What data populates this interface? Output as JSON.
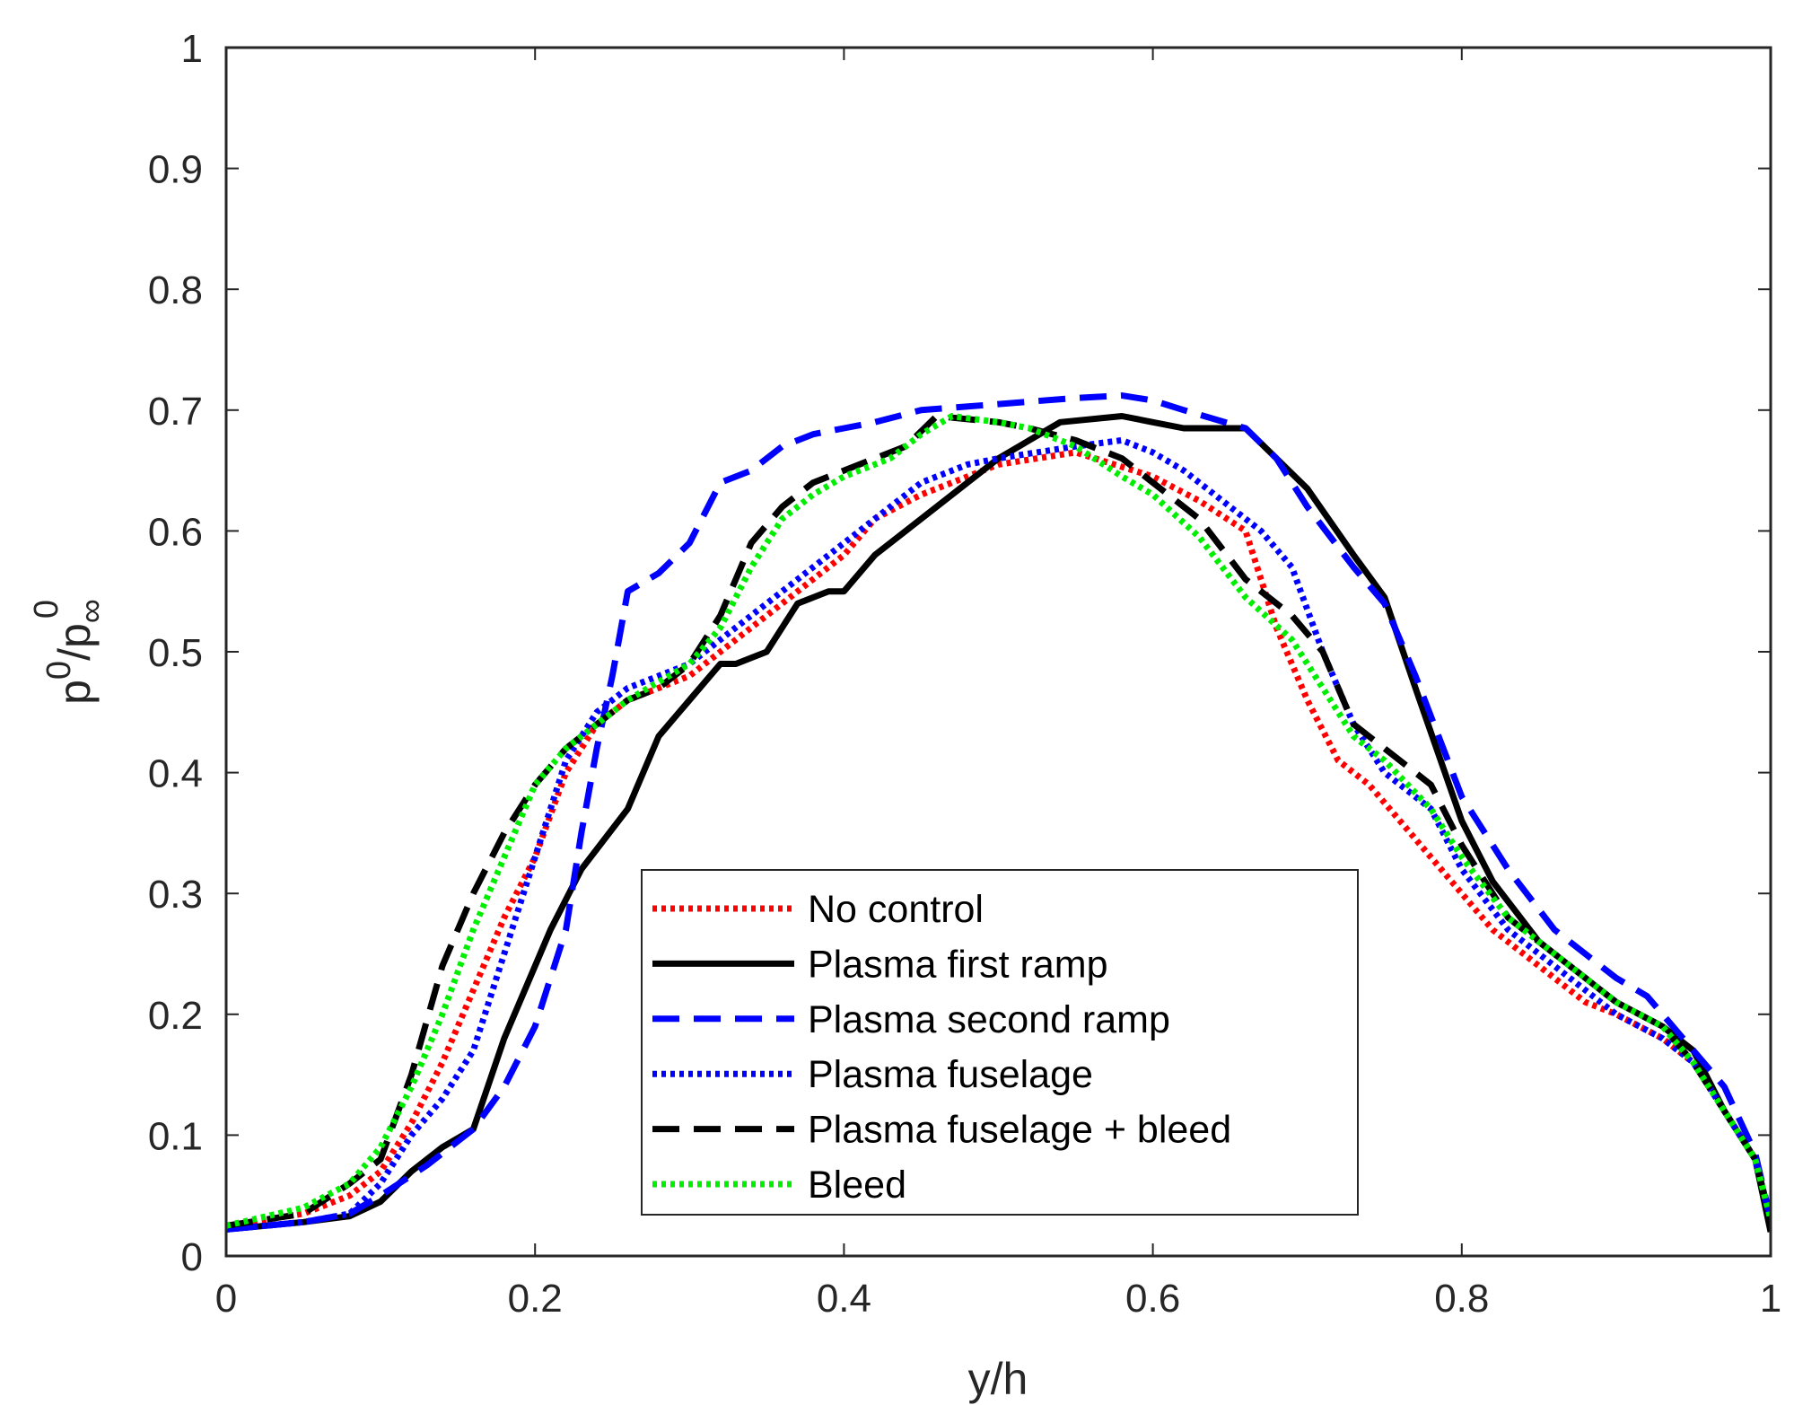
{
  "chart_data": {
    "type": "line",
    "title": "",
    "xlabel": "y/h",
    "ylabel": {
      "base": "p",
      "sup": "0",
      "slash": "/",
      "base2": "p",
      "sub2": "∞",
      "sup2": "0"
    },
    "xlim": [
      0,
      1
    ],
    "ylim": [
      0,
      1
    ],
    "x_ticks": [
      0,
      0.2,
      0.4,
      0.6,
      0.8,
      1
    ],
    "x_tick_labels": [
      "0",
      "0.2",
      "0.4",
      "0.6",
      "0.8",
      "1"
    ],
    "y_ticks": [
      0,
      0.1,
      0.2,
      0.3,
      0.4,
      0.5,
      0.6,
      0.7,
      0.8,
      0.9,
      1
    ],
    "y_tick_labels": [
      "0",
      "0.1",
      "0.2",
      "0.3",
      "0.4",
      "0.5",
      "0.6",
      "0.7",
      "0.8",
      "0.9",
      "1"
    ],
    "grid": false,
    "legend_position": "bottom-center",
    "series": [
      {
        "name": "No control",
        "color": "#ff0000",
        "style": "dotted",
        "x": [
          0,
          0.05,
          0.08,
          0.1,
          0.12,
          0.14,
          0.16,
          0.18,
          0.2,
          0.22,
          0.24,
          0.26,
          0.28,
          0.3,
          0.32,
          0.34,
          0.36,
          0.38,
          0.4,
          0.42,
          0.45,
          0.5,
          0.55,
          0.6,
          0.63,
          0.66,
          0.68,
          0.7,
          0.72,
          0.74,
          0.76,
          0.78,
          0.8,
          0.82,
          0.85,
          0.88,
          0.9,
          0.93,
          0.95,
          0.97,
          0.99,
          1
        ],
        "y": [
          0.025,
          0.035,
          0.05,
          0.07,
          0.11,
          0.16,
          0.22,
          0.28,
          0.33,
          0.4,
          0.44,
          0.46,
          0.47,
          0.48,
          0.5,
          0.52,
          0.54,
          0.56,
          0.58,
          0.61,
          0.63,
          0.655,
          0.665,
          0.645,
          0.625,
          0.6,
          0.52,
          0.46,
          0.41,
          0.39,
          0.36,
          0.33,
          0.3,
          0.27,
          0.24,
          0.21,
          0.2,
          0.18,
          0.16,
          0.12,
          0.08,
          0.03
        ]
      },
      {
        "name": "Plasma first ramp",
        "color": "#000000",
        "style": "solid",
        "x": [
          0,
          0.05,
          0.08,
          0.1,
          0.12,
          0.14,
          0.16,
          0.18,
          0.2,
          0.21,
          0.23,
          0.26,
          0.28,
          0.3,
          0.32,
          0.33,
          0.35,
          0.37,
          0.39,
          0.4,
          0.42,
          0.45,
          0.5,
          0.54,
          0.58,
          0.6,
          0.62,
          0.66,
          0.68,
          0.7,
          0.73,
          0.75,
          0.77,
          0.8,
          0.82,
          0.85,
          0.88,
          0.9,
          0.93,
          0.95,
          0.96,
          0.97,
          0.99,
          1
        ],
        "y": [
          0.022,
          0.028,
          0.033,
          0.045,
          0.07,
          0.09,
          0.105,
          0.18,
          0.24,
          0.27,
          0.32,
          0.37,
          0.43,
          0.46,
          0.49,
          0.49,
          0.5,
          0.54,
          0.55,
          0.55,
          0.58,
          0.61,
          0.66,
          0.69,
          0.695,
          0.69,
          0.685,
          0.685,
          0.66,
          0.635,
          0.58,
          0.545,
          0.47,
          0.36,
          0.31,
          0.26,
          0.23,
          0.21,
          0.19,
          0.17,
          0.145,
          0.12,
          0.08,
          0.02
        ]
      },
      {
        "name": "Plasma second ramp",
        "color": "#0000ff",
        "style": "dashed",
        "x": [
          0,
          0.05,
          0.08,
          0.1,
          0.13,
          0.16,
          0.18,
          0.2,
          0.22,
          0.23,
          0.24,
          0.25,
          0.26,
          0.28,
          0.3,
          0.32,
          0.34,
          0.36,
          0.38,
          0.4,
          0.42,
          0.45,
          0.5,
          0.55,
          0.58,
          0.6,
          0.62,
          0.66,
          0.68,
          0.7,
          0.73,
          0.75,
          0.77,
          0.8,
          0.83,
          0.86,
          0.88,
          0.9,
          0.92,
          0.95,
          0.97,
          0.99,
          1
        ],
        "y": [
          0.022,
          0.028,
          0.035,
          0.05,
          0.075,
          0.105,
          0.14,
          0.19,
          0.27,
          0.35,
          0.42,
          0.48,
          0.55,
          0.565,
          0.59,
          0.64,
          0.65,
          0.67,
          0.68,
          0.685,
          0.69,
          0.7,
          0.705,
          0.71,
          0.712,
          0.708,
          0.7,
          0.685,
          0.66,
          0.62,
          0.57,
          0.54,
          0.48,
          0.38,
          0.32,
          0.27,
          0.25,
          0.23,
          0.215,
          0.17,
          0.14,
          0.085,
          0.03
        ]
      },
      {
        "name": "Plasma fuselage",
        "color": "#0000ff",
        "style": "dotted",
        "x": [
          0,
          0.05,
          0.08,
          0.1,
          0.12,
          0.14,
          0.16,
          0.18,
          0.2,
          0.22,
          0.24,
          0.26,
          0.28,
          0.3,
          0.32,
          0.35,
          0.38,
          0.4,
          0.42,
          0.45,
          0.48,
          0.5,
          0.55,
          0.58,
          0.6,
          0.62,
          0.65,
          0.67,
          0.69,
          0.71,
          0.73,
          0.75,
          0.78,
          0.8,
          0.83,
          0.86,
          0.88,
          0.9,
          0.93,
          0.95,
          0.97,
          0.99,
          1
        ],
        "y": [
          0.022,
          0.028,
          0.035,
          0.06,
          0.1,
          0.13,
          0.17,
          0.25,
          0.33,
          0.41,
          0.45,
          0.47,
          0.48,
          0.49,
          0.51,
          0.54,
          0.57,
          0.59,
          0.61,
          0.64,
          0.655,
          0.66,
          0.67,
          0.675,
          0.665,
          0.65,
          0.62,
          0.6,
          0.57,
          0.5,
          0.44,
          0.4,
          0.37,
          0.32,
          0.27,
          0.24,
          0.22,
          0.2,
          0.18,
          0.16,
          0.12,
          0.08,
          0.03
        ]
      },
      {
        "name": "Plasma fuselage + bleed",
        "color": "#000000",
        "style": "dashed",
        "x": [
          0,
          0.05,
          0.08,
          0.1,
          0.12,
          0.14,
          0.16,
          0.18,
          0.2,
          0.22,
          0.24,
          0.26,
          0.28,
          0.3,
          0.32,
          0.34,
          0.36,
          0.38,
          0.4,
          0.42,
          0.44,
          0.46,
          0.5,
          0.52,
          0.55,
          0.58,
          0.6,
          0.63,
          0.66,
          0.69,
          0.71,
          0.73,
          0.75,
          0.78,
          0.8,
          0.83,
          0.86,
          0.88,
          0.9,
          0.93,
          0.95,
          0.97,
          0.99,
          1
        ],
        "y": [
          0.025,
          0.035,
          0.06,
          0.08,
          0.15,
          0.24,
          0.3,
          0.35,
          0.39,
          0.42,
          0.44,
          0.46,
          0.47,
          0.49,
          0.53,
          0.59,
          0.62,
          0.64,
          0.65,
          0.66,
          0.67,
          0.695,
          0.69,
          0.685,
          0.675,
          0.66,
          0.64,
          0.61,
          0.56,
          0.53,
          0.5,
          0.44,
          0.42,
          0.39,
          0.34,
          0.28,
          0.25,
          0.23,
          0.21,
          0.19,
          0.16,
          0.12,
          0.08,
          0.03
        ]
      },
      {
        "name": "Bleed",
        "color": "#00ee00",
        "style": "dotted",
        "x": [
          0,
          0.05,
          0.08,
          0.1,
          0.12,
          0.14,
          0.16,
          0.18,
          0.2,
          0.22,
          0.24,
          0.26,
          0.28,
          0.3,
          0.32,
          0.34,
          0.36,
          0.38,
          0.4,
          0.42,
          0.43,
          0.45,
          0.47,
          0.5,
          0.52,
          0.55,
          0.58,
          0.6,
          0.63,
          0.66,
          0.69,
          0.71,
          0.73,
          0.75,
          0.78,
          0.8,
          0.83,
          0.86,
          0.88,
          0.9,
          0.93,
          0.95,
          0.97,
          0.99,
          1
        ],
        "y": [
          0.025,
          0.04,
          0.06,
          0.09,
          0.14,
          0.2,
          0.27,
          0.33,
          0.39,
          0.42,
          0.44,
          0.46,
          0.475,
          0.49,
          0.52,
          0.57,
          0.61,
          0.63,
          0.645,
          0.655,
          0.66,
          0.68,
          0.695,
          0.69,
          0.685,
          0.67,
          0.645,
          0.63,
          0.595,
          0.545,
          0.51,
          0.47,
          0.43,
          0.41,
          0.37,
          0.33,
          0.28,
          0.25,
          0.23,
          0.21,
          0.19,
          0.16,
          0.12,
          0.08,
          0.03
        ]
      }
    ]
  }
}
